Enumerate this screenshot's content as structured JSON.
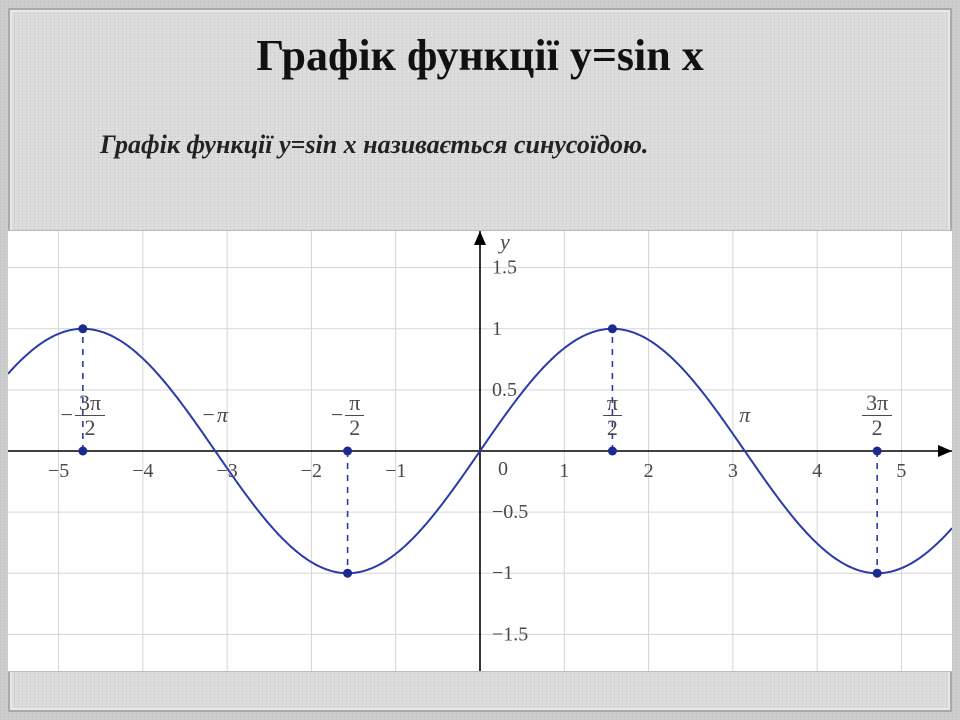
{
  "title": "Графік функції y=sin x",
  "title_fontsize": 44,
  "subtitle": "Графік функції y=sin x називається синусоїдою.",
  "subtitle_fontsize": 26,
  "chart": {
    "type": "line",
    "background_color": "#ffffff",
    "grid_color": "#d6d6d6",
    "axis_color": "#000000",
    "curve_color": "#2a3aa8",
    "dashed_color": "#2a3aa8",
    "marker_color": "#1a2a8f",
    "tick_label_color": "#4a4a4a",
    "text_fontsize": 22,
    "tick_fontsize": 20,
    "line_width": 2,
    "marker_radius": 4.5,
    "xlim": [
      -5.6,
      5.6
    ],
    "ylim": [
      -1.8,
      1.8
    ],
    "x_grid_step": 1,
    "y_grid_step": 0.5,
    "x_ticks": [
      -5,
      -4,
      -3,
      -2,
      -1,
      1,
      2,
      3,
      4,
      5
    ],
    "y_ticks": [
      -1.5,
      -1,
      -0.5,
      0.5,
      1,
      1.5
    ],
    "y_tick_labels": [
      "−1.5",
      "−1",
      "−0.5",
      "0.5",
      "1",
      "1.5"
    ],
    "x_tick_labels": [
      "−5",
      "−4",
      "−3",
      "−2",
      "−1",
      "1",
      "2",
      "3",
      "4",
      "5"
    ],
    "origin_label": "0",
    "y_axis_label": "y",
    "pi_labels": [
      {
        "x": -4.712,
        "neg": true,
        "frac": {
          "num": "3π",
          "den": "2"
        }
      },
      {
        "x": -3.142,
        "neg": true,
        "text": "π"
      },
      {
        "x": -1.571,
        "neg": true,
        "frac": {
          "num": "π",
          "den": "2"
        }
      },
      {
        "x": 1.571,
        "neg": false,
        "frac": {
          "num": "π",
          "den": "2"
        }
      },
      {
        "x": 3.142,
        "neg": false,
        "text": "π"
      },
      {
        "x": 4.712,
        "neg": false,
        "frac": {
          "num": "3π",
          "den": "2"
        }
      }
    ],
    "markers": [
      {
        "x": -4.712,
        "y0": 0,
        "y1": 1
      },
      {
        "x": -1.571,
        "y0": 0,
        "y1": -1
      },
      {
        "x": 1.571,
        "y0": 0,
        "y1": 1
      },
      {
        "x": 4.712,
        "y0": 0,
        "y1": -1
      }
    ]
  }
}
